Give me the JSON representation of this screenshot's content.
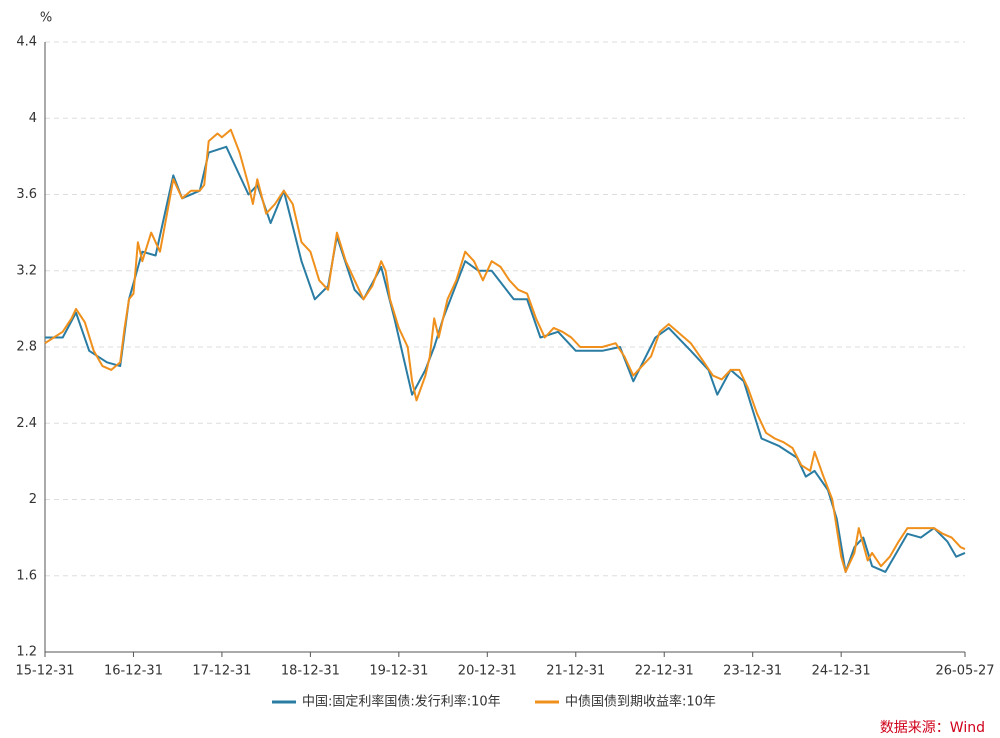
{
  "chart_data": {
    "type": "line",
    "y_unit": "%",
    "source": "数据来源：Wind",
    "xlim": [
      2016,
      2026.4
    ],
    "xticks": [
      {
        "value": 2016,
        "label": "15-12-31"
      },
      {
        "value": 2017,
        "label": "16-12-31"
      },
      {
        "value": 2018,
        "label": "17-12-31"
      },
      {
        "value": 2019,
        "label": "18-12-31"
      },
      {
        "value": 2020,
        "label": "19-12-31"
      },
      {
        "value": 2021,
        "label": "20-12-31"
      },
      {
        "value": 2022,
        "label": "21-12-31"
      },
      {
        "value": 2023,
        "label": "22-12-31"
      },
      {
        "value": 2024,
        "label": "23-12-31"
      },
      {
        "value": 2025,
        "label": "24-12-31"
      },
      {
        "value": 2026.4,
        "label": "26-05-27"
      }
    ],
    "ylim": [
      1.2,
      4.4
    ],
    "yticks": [
      1.2,
      1.6,
      2,
      2.4,
      2.8,
      3.2,
      3.6,
      4,
      4.4
    ],
    "grid": true,
    "series": [
      {
        "name": "中国:固定利率国债:发行利率:10年",
        "color": "#2a7ca3",
        "x": [
          2016.0,
          2016.2,
          2016.35,
          2016.5,
          2016.7,
          2016.85,
          2016.95,
          2017.1,
          2017.25,
          2017.45,
          2017.55,
          2017.75,
          2017.85,
          2018.05,
          2018.3,
          2018.4,
          2018.55,
          2018.7,
          2018.9,
          2019.05,
          2019.2,
          2019.3,
          2019.5,
          2019.6,
          2019.8,
          2019.95,
          2020.15,
          2020.3,
          2020.4,
          2020.5,
          2020.75,
          2020.9,
          2021.05,
          2021.3,
          2021.45,
          2021.6,
          2021.8,
          2022.0,
          2022.3,
          2022.5,
          2022.65,
          2022.9,
          2023.05,
          2023.3,
          2023.5,
          2023.6,
          2023.75,
          2023.9,
          2024.1,
          2024.3,
          2024.5,
          2024.6,
          2024.7,
          2024.85,
          2024.95,
          2025.05,
          2025.15,
          2025.25,
          2025.35,
          2025.5,
          2025.6,
          2025.75,
          2025.9,
          2026.05,
          2026.2,
          2026.3,
          2026.4
        ],
        "values": [
          2.85,
          2.85,
          2.98,
          2.78,
          2.72,
          2.7,
          3.05,
          3.3,
          3.28,
          3.7,
          3.58,
          3.62,
          3.82,
          3.85,
          3.6,
          3.65,
          3.45,
          3.62,
          3.25,
          3.05,
          3.12,
          3.38,
          3.1,
          3.05,
          3.22,
          2.95,
          2.55,
          2.68,
          2.8,
          2.95,
          3.25,
          3.2,
          3.2,
          3.05,
          3.05,
          2.85,
          2.88,
          2.78,
          2.78,
          2.8,
          2.62,
          2.85,
          2.9,
          2.78,
          2.68,
          2.55,
          2.68,
          2.62,
          2.32,
          2.28,
          2.22,
          2.12,
          2.15,
          2.05,
          1.9,
          1.62,
          1.75,
          1.8,
          1.65,
          1.62,
          1.7,
          1.82,
          1.8,
          1.85,
          1.78,
          1.7,
          1.72
        ]
      },
      {
        "name": "中债国债到期收益率:10年",
        "color": "#f0901c",
        "x": [
          2016.0,
          2016.1,
          2016.2,
          2016.3,
          2016.35,
          2016.45,
          2016.55,
          2016.65,
          2016.75,
          2016.85,
          2016.9,
          2016.95,
          2017.0,
          2017.05,
          2017.1,
          2017.2,
          2017.3,
          2017.4,
          2017.45,
          2017.55,
          2017.65,
          2017.75,
          2017.8,
          2017.85,
          2017.95,
          2018.0,
          2018.1,
          2018.2,
          2018.3,
          2018.35,
          2018.4,
          2018.5,
          2018.6,
          2018.7,
          2018.8,
          2018.9,
          2019.0,
          2019.1,
          2019.2,
          2019.3,
          2019.4,
          2019.5,
          2019.6,
          2019.7,
          2019.8,
          2019.85,
          2019.9,
          2020.0,
          2020.1,
          2020.15,
          2020.2,
          2020.3,
          2020.35,
          2020.4,
          2020.45,
          2020.55,
          2020.65,
          2020.75,
          2020.85,
          2020.95,
          2021.05,
          2021.15,
          2021.25,
          2021.35,
          2021.45,
          2021.55,
          2021.65,
          2021.75,
          2021.85,
          2021.95,
          2022.05,
          2022.15,
          2022.3,
          2022.45,
          2022.55,
          2022.65,
          2022.75,
          2022.85,
          2022.95,
          2023.05,
          2023.15,
          2023.3,
          2023.45,
          2023.55,
          2023.65,
          2023.75,
          2023.85,
          2023.95,
          2024.05,
          2024.15,
          2024.25,
          2024.35,
          2024.45,
          2024.55,
          2024.65,
          2024.7,
          2024.8,
          2024.9,
          2025.0,
          2025.05,
          2025.15,
          2025.2,
          2025.3,
          2025.35,
          2025.45,
          2025.55,
          2025.65,
          2025.75,
          2025.85,
          2025.95,
          2026.05,
          2026.15,
          2026.25,
          2026.35,
          2026.4
        ],
        "values": [
          2.82,
          2.85,
          2.88,
          2.95,
          3.0,
          2.93,
          2.78,
          2.7,
          2.68,
          2.72,
          2.9,
          3.05,
          3.08,
          3.35,
          3.25,
          3.4,
          3.3,
          3.55,
          3.68,
          3.58,
          3.62,
          3.62,
          3.65,
          3.88,
          3.92,
          3.9,
          3.94,
          3.82,
          3.65,
          3.55,
          3.68,
          3.5,
          3.55,
          3.62,
          3.55,
          3.35,
          3.3,
          3.15,
          3.1,
          3.4,
          3.25,
          3.15,
          3.05,
          3.12,
          3.25,
          3.2,
          3.05,
          2.9,
          2.8,
          2.62,
          2.52,
          2.65,
          2.75,
          2.95,
          2.85,
          3.05,
          3.15,
          3.3,
          3.25,
          3.15,
          3.25,
          3.22,
          3.15,
          3.1,
          3.08,
          2.95,
          2.85,
          2.9,
          2.88,
          2.85,
          2.8,
          2.8,
          2.8,
          2.82,
          2.75,
          2.65,
          2.7,
          2.75,
          2.88,
          2.92,
          2.88,
          2.82,
          2.72,
          2.65,
          2.63,
          2.68,
          2.68,
          2.58,
          2.45,
          2.35,
          2.32,
          2.3,
          2.27,
          2.18,
          2.15,
          2.25,
          2.12,
          2.0,
          1.7,
          1.62,
          1.72,
          1.85,
          1.68,
          1.72,
          1.65,
          1.7,
          1.78,
          1.85,
          1.85,
          1.85,
          1.85,
          1.82,
          1.8,
          1.75,
          1.74
        ]
      }
    ]
  }
}
